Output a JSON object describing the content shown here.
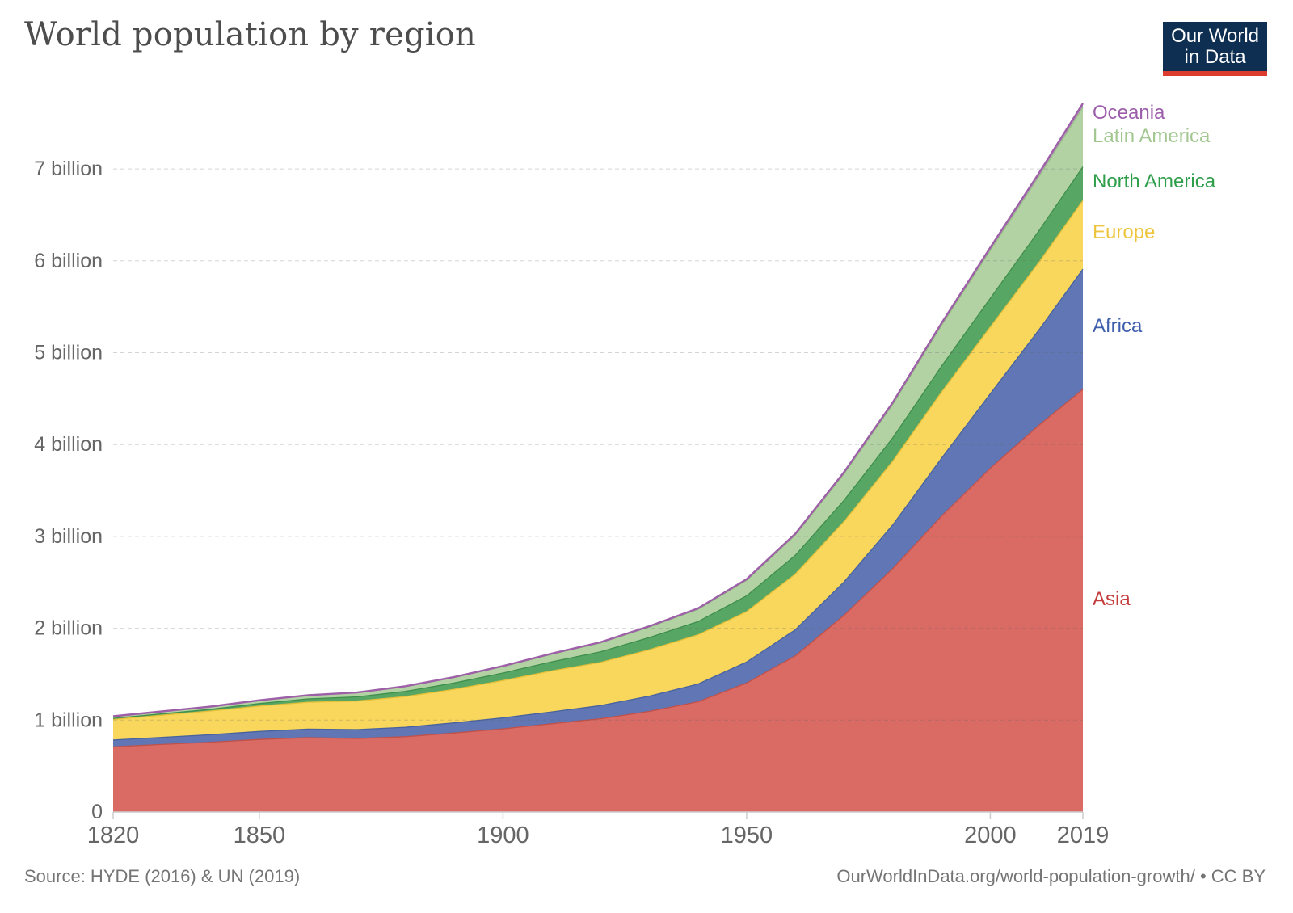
{
  "header": {
    "title": "World population by region"
  },
  "logo": {
    "line1": "Our World",
    "line2": "in Data",
    "bg_color": "#0e2e52",
    "accent_color": "#dc3c2e",
    "text_color": "#ffffff"
  },
  "footer": {
    "source": "Source: HYDE (2016) & UN (2019)",
    "link": "OurWorldInData.org/world-population-growth/ • CC BY"
  },
  "chart_data": {
    "type": "area",
    "stacked": true,
    "title": "World population by region",
    "xlabel": "",
    "ylabel": "",
    "xlim": [
      1820,
      2019
    ],
    "ylim": [
      0,
      7.8
    ],
    "grid": "dashed-horizontal",
    "legend_position": "right",
    "x": [
      1820,
      1830,
      1840,
      1850,
      1860,
      1870,
      1880,
      1890,
      1900,
      1910,
      1920,
      1930,
      1940,
      1950,
      1960,
      1970,
      1980,
      1990,
      2000,
      2010,
      2019
    ],
    "series": [
      {
        "name": "Asia",
        "fill": "#d96a64",
        "stroke": "#c05149",
        "label_color": "#c43d3d",
        "values": [
          0.71,
          0.735,
          0.76,
          0.79,
          0.81,
          0.8,
          0.82,
          0.86,
          0.905,
          0.96,
          1.015,
          1.095,
          1.2,
          1.404,
          1.7,
          2.142,
          2.65,
          3.221,
          3.741,
          4.21,
          4.601
        ]
      },
      {
        "name": "Africa",
        "fill": "#6076b5",
        "stroke": "#48629f",
        "label_color": "#3f5fad",
        "values": [
          0.074,
          0.078,
          0.082,
          0.087,
          0.092,
          0.097,
          0.103,
          0.11,
          0.12,
          0.13,
          0.143,
          0.166,
          0.192,
          0.228,
          0.284,
          0.363,
          0.476,
          0.63,
          0.811,
          1.039,
          1.308
        ]
      },
      {
        "name": "Europe",
        "fill": "#f8d75c",
        "stroke": "#e3bf3a",
        "label_color": "#eec53e",
        "values": [
          0.224,
          0.241,
          0.257,
          0.276,
          0.293,
          0.311,
          0.334,
          0.366,
          0.406,
          0.446,
          0.47,
          0.504,
          0.536,
          0.549,
          0.606,
          0.657,
          0.694,
          0.721,
          0.727,
          0.736,
          0.747
        ]
      },
      {
        "name": "North America",
        "fill": "#57a663",
        "stroke": "#3f8e4c",
        "label_color": "#2f9e4b",
        "values": [
          0.011,
          0.015,
          0.019,
          0.027,
          0.036,
          0.045,
          0.056,
          0.069,
          0.082,
          0.099,
          0.115,
          0.134,
          0.144,
          0.172,
          0.204,
          0.231,
          0.254,
          0.28,
          0.312,
          0.343,
          0.367
        ]
      },
      {
        "name": "Latin America",
        "fill": "#b3d2a4",
        "stroke": "#97bd85",
        "label_color": "#a2c791",
        "values": [
          0.022,
          0.025,
          0.029,
          0.034,
          0.039,
          0.045,
          0.052,
          0.06,
          0.07,
          0.083,
          0.096,
          0.113,
          0.133,
          0.169,
          0.22,
          0.287,
          0.362,
          0.443,
          0.522,
          0.591,
          0.648
        ]
      },
      {
        "name": "Oceania",
        "fill": "#b98fc0",
        "stroke": "#9d60a8",
        "label_color": "#9c5eab",
        "values": [
          0.001,
          0.001,
          0.001,
          0.002,
          0.002,
          0.003,
          0.004,
          0.005,
          0.006,
          0.007,
          0.009,
          0.01,
          0.011,
          0.013,
          0.016,
          0.02,
          0.023,
          0.027,
          0.031,
          0.037,
          0.042
        ]
      }
    ],
    "xticks": [
      {
        "value": 1820,
        "label": "1820"
      },
      {
        "value": 1850,
        "label": "1850"
      },
      {
        "value": 1900,
        "label": "1900"
      },
      {
        "value": 1950,
        "label": "1950"
      },
      {
        "value": 2000,
        "label": "2000"
      },
      {
        "value": 2019,
        "label": "2019"
      }
    ],
    "yticks": [
      {
        "value": 0,
        "label": "0"
      },
      {
        "value": 1,
        "label": "1 billion"
      },
      {
        "value": 2,
        "label": "2 billion"
      },
      {
        "value": 3,
        "label": "3 billion"
      },
      {
        "value": 4,
        "label": "4 billion"
      },
      {
        "value": 5,
        "label": "5 billion"
      },
      {
        "value": 6,
        "label": "6 billion"
      },
      {
        "value": 7,
        "label": "7 billion"
      }
    ],
    "axis_text_color": "#666666",
    "gridline_color": "#d8d8d8",
    "axis_line_color": "#cccccc"
  }
}
